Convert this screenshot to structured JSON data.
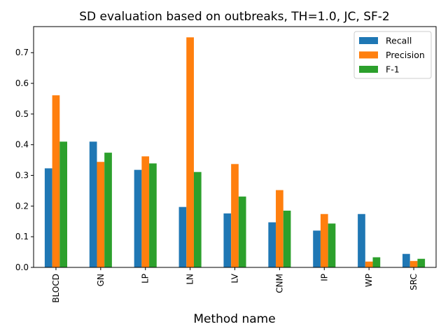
{
  "chart_data": {
    "type": "bar",
    "title": "SD evaluation based on outbreaks, TH=1.0, JC, SF-2",
    "xlabel": "Method name",
    "ylabel": "",
    "categories": [
      "BLOCD",
      "GN",
      "LP",
      "LN",
      "LV",
      "CNM",
      "IP",
      "WP",
      "SRC"
    ],
    "series": [
      {
        "name": "Recall",
        "color": "#1f77b4",
        "values": [
          0.323,
          0.41,
          0.318,
          0.197,
          0.176,
          0.147,
          0.12,
          0.174,
          0.044
        ]
      },
      {
        "name": "Precision",
        "color": "#ff7f0e",
        "values": [
          0.561,
          0.344,
          0.362,
          0.75,
          0.337,
          0.252,
          0.174,
          0.019,
          0.021
        ]
      },
      {
        "name": "F-1",
        "color": "#2ca02c",
        "values": [
          0.41,
          0.374,
          0.339,
          0.311,
          0.231,
          0.185,
          0.143,
          0.033,
          0.028
        ]
      }
    ],
    "ylim": [
      0,
      0.785
    ],
    "yticks": [
      0.0,
      0.1,
      0.2,
      0.3,
      0.4,
      0.5,
      0.6,
      0.7
    ],
    "ytick_labels": [
      "0.0",
      "0.1",
      "0.2",
      "0.3",
      "0.4",
      "0.5",
      "0.6",
      "0.7"
    ],
    "grid": false,
    "legend_position": "top-right"
  }
}
